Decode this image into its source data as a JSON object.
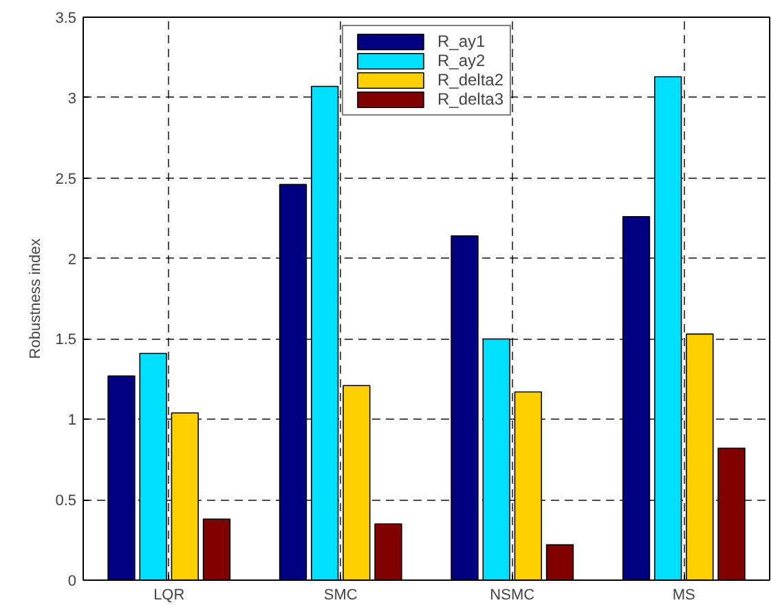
{
  "chart_data": {
    "type": "bar",
    "ylabel": "Robustness index",
    "categories": [
      "LQR",
      "SMC",
      "NSMC",
      "MS"
    ],
    "series": [
      {
        "name": "R_ay1",
        "color": "#000080",
        "values": [
          1.27,
          2.46,
          2.14,
          2.26
        ]
      },
      {
        "name": "R_ay2",
        "color": "#00dfff",
        "values": [
          1.41,
          3.07,
          1.5,
          3.13
        ]
      },
      {
        "name": "R_delta2",
        "color": "#ffcf00",
        "values": [
          1.04,
          1.21,
          1.17,
          1.53
        ]
      },
      {
        "name": "R_delta3",
        "color": "#800000",
        "values": [
          0.38,
          0.35,
          0.22,
          0.82
        ]
      }
    ],
    "ylim": [
      0,
      3.5
    ],
    "yticks": [
      0,
      0.5,
      1,
      1.5,
      2,
      2.5,
      3,
      3.5
    ],
    "grid": true,
    "legend": "top"
  }
}
